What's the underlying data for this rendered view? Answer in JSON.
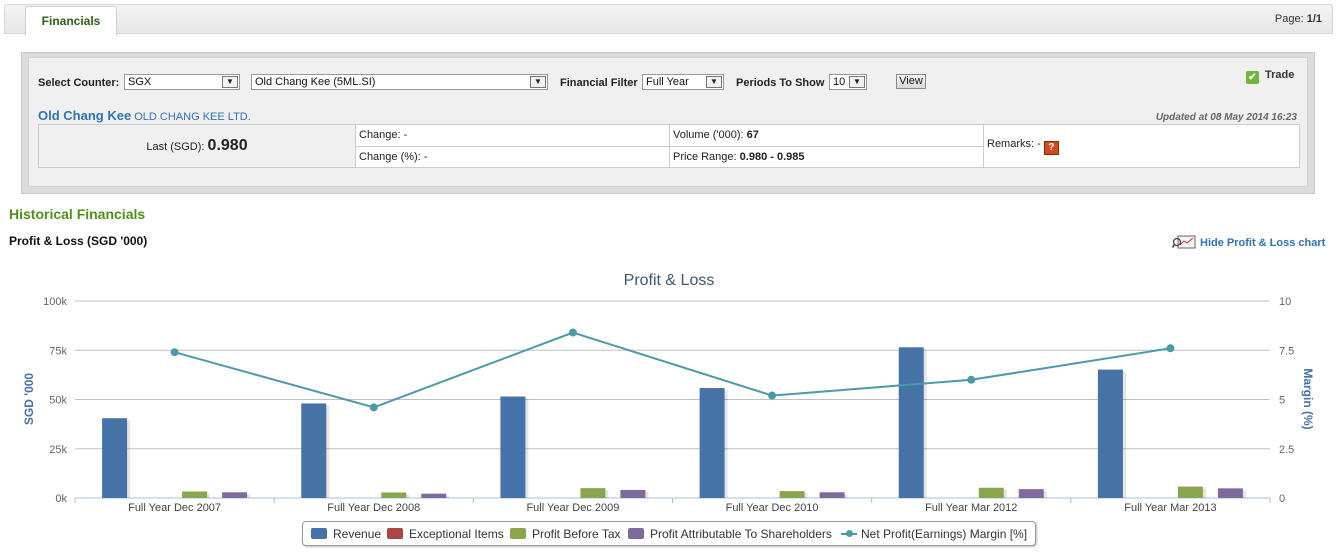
{
  "tabs": {
    "financials": "Financials"
  },
  "page": {
    "label": "Page:",
    "value": "1/1"
  },
  "filters": {
    "select_counter_label": "Select Counter:",
    "exchange": "SGX",
    "counter": "Old Chang Kee (5ML.SI)",
    "financial_filter_label": "Financial Filter",
    "financial_filter": "Full Year",
    "periods_label": "Periods To Show",
    "periods": "10",
    "view_button": "View"
  },
  "trade_label": "Trade",
  "company": {
    "short_name": "Old Chang Kee",
    "full_name": "OLD CHANG KEE LTD.",
    "updated": "Updated at 08 May 2014 16:23"
  },
  "quote": {
    "last_label": "Last (SGD):",
    "last_value": "0.980",
    "change_label": "Change:",
    "change_value": "-",
    "change_pct_label": "Change (%):",
    "change_pct_value": "-",
    "volume_label": "Volume ('000):",
    "volume_value": "67",
    "price_range_label": "Price Range:",
    "price_range_value": "0.980 - 0.985",
    "remarks_label": "Remarks:",
    "remarks_value": "-",
    "remarks_icon": "?"
  },
  "section": {
    "historical": "Historical Financials",
    "pl_title": "Profit & Loss (SGD '000)",
    "hide_chart": "Hide Profit & Loss chart"
  },
  "colors": {
    "revenue": "#4572a7",
    "exceptional": "#aa4643",
    "pbt": "#89a54e",
    "attributable": "#80699b",
    "margin": "#4a9aa8"
  },
  "chart_data": {
    "type": "bar",
    "title": "Profit & Loss",
    "categories": [
      "Full Year Dec 2007",
      "Full Year Dec 2008",
      "Full Year Dec 2009",
      "Full Year Dec 2010",
      "Full Year Mar 2012",
      "Full Year Mar 2013"
    ],
    "ylabel": "SGD '000",
    "ylim": [
      0,
      100000
    ],
    "yticks": [
      "0k",
      "25k",
      "50k",
      "75k",
      "100k"
    ],
    "y2label": "Margin (%)",
    "y2lim": [
      0,
      10
    ],
    "y2ticks": [
      "0",
      "2.5",
      "5",
      "7.5",
      "10"
    ],
    "series": [
      {
        "name": "Revenue",
        "type": "bar",
        "values": [
          40500,
          48000,
          51500,
          55800,
          76500,
          65200
        ]
      },
      {
        "name": "Exceptional Items",
        "type": "bar",
        "values": [
          0,
          0,
          0,
          0,
          0,
          0
        ]
      },
      {
        "name": "Profit Before Tax",
        "type": "bar",
        "values": [
          3300,
          2800,
          5000,
          3500,
          5200,
          5800
        ]
      },
      {
        "name": "Profit Attributable To Shareholders",
        "type": "bar",
        "values": [
          2900,
          2200,
          4100,
          2900,
          4500,
          4900
        ]
      },
      {
        "name": "Net Profit(Earnings) Margin [%]",
        "type": "line",
        "axis": "right",
        "values": [
          7.4,
          4.6,
          8.4,
          5.2,
          6.0,
          7.6
        ]
      }
    ],
    "grid": true,
    "legend": "bottom"
  }
}
